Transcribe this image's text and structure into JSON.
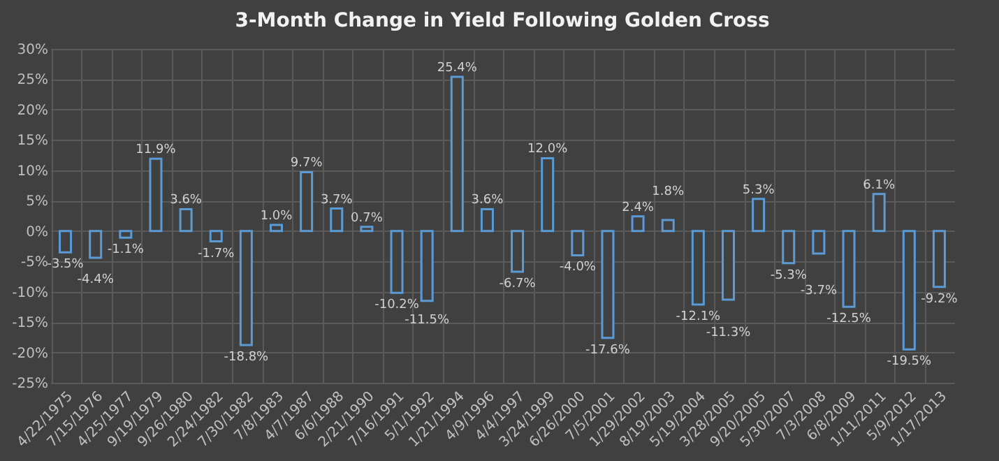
{
  "chart_data": {
    "type": "bar",
    "title": "3-Month Change in Yield Following Golden Cross",
    "categories": [
      "4/22/1975",
      "7/15/1976",
      "4/25/1977",
      "9/19/1979",
      "9/26/1980",
      "2/24/1982",
      "7/30/1982",
      "7/8/1983",
      "4/7/1987",
      "6/6/1988",
      "2/21/1990",
      "7/16/1991",
      "5/1/1992",
      "1/21/1994",
      "4/9/1996",
      "4/4/1997",
      "3/24/1999",
      "6/26/2000",
      "7/5/2001",
      "1/29/2002",
      "8/19/2003",
      "5/19/2004",
      "3/28/2005",
      "9/20/2005",
      "5/30/2007",
      "7/3/2008",
      "6/8/2009",
      "1/11/2011",
      "5/9/2012",
      "1/17/2013"
    ],
    "values": [
      -3.5,
      -4.4,
      -1.1,
      11.9,
      3.6,
      -1.7,
      -18.8,
      1.0,
      9.7,
      3.7,
      0.7,
      -10.2,
      -11.5,
      25.4,
      3.6,
      -6.7,
      12.0,
      -4.0,
      -17.6,
      2.4,
      1.8,
      -12.1,
      -11.3,
      5.3,
      -5.3,
      -3.7,
      -12.5,
      6.1,
      -19.5,
      -9.2
    ],
    "value_labels": [
      "-3.5%",
      "-4.4%",
      "-1.1%",
      "11.9%",
      "3.6%",
      "-1.7%",
      "-18.8%",
      "1.0%",
      "9.7%",
      "3.7%",
      "0.7%",
      "-10.2%",
      "-11.5%",
      "25.4%",
      "3.6%",
      "-6.7%",
      "12.0%",
      "-4.0%",
      "-17.6%",
      "2.4%",
      "1.8%",
      "-12.1%",
      "-11.3%",
      "5.3%",
      "-5.3%",
      "-3.7%",
      "-12.5%",
      "6.1%",
      "-19.5%",
      "-9.2%"
    ],
    "color": "#5b9bd5",
    "ylim": [
      -25,
      30
    ],
    "yticks": [
      {
        "value": -25,
        "label": "-25%"
      },
      {
        "value": -20,
        "label": "-20%"
      },
      {
        "value": -15,
        "label": "-15%"
      },
      {
        "value": -10,
        "label": "-10%"
      },
      {
        "value": -5,
        "label": "-5%"
      },
      {
        "value": 0,
        "label": "0%"
      },
      {
        "value": 5,
        "label": "5%"
      },
      {
        "value": 10,
        "label": "10%"
      },
      {
        "value": 15,
        "label": "15%"
      },
      {
        "value": 20,
        "label": "20%"
      },
      {
        "value": 25,
        "label": "25%"
      },
      {
        "value": 30,
        "label": "30%"
      }
    ],
    "grid": true
  }
}
